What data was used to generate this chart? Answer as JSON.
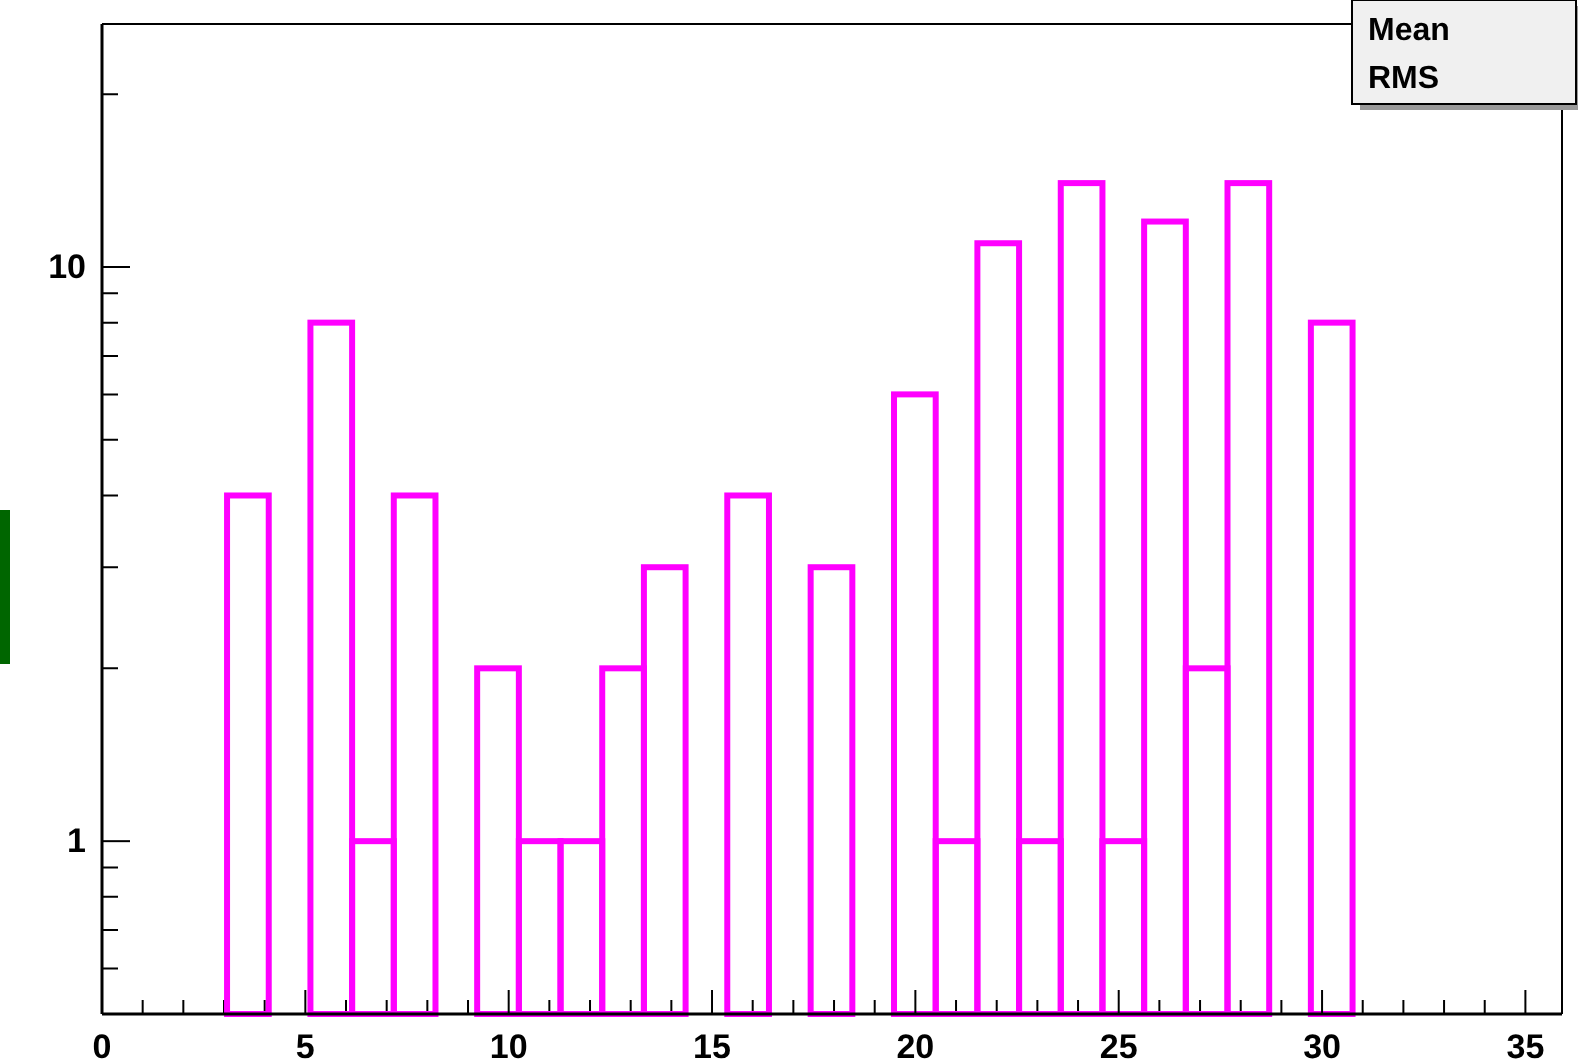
{
  "chart_data": {
    "type": "histogram",
    "bins": [
      3.075,
      4.1,
      5.125,
      6.15,
      7.175,
      8.2,
      9.225,
      10.25,
      11.275,
      12.3,
      13.325,
      14.35,
      15.375,
      16.4,
      17.425,
      18.45,
      19.475,
      20.5,
      21.525,
      22.55,
      23.575,
      24.6,
      25.625,
      26.65,
      27.675,
      28.7,
      29.725,
      30.75
    ],
    "values": [
      4,
      null,
      8,
      1,
      4,
      null,
      2,
      1,
      1,
      2,
      3,
      null,
      4,
      null,
      3,
      null,
      6,
      1,
      11,
      1,
      14,
      1,
      12,
      2,
      14,
      null,
      8
    ],
    "color": "#ff00ff",
    "log": "y",
    "xlim": [
      0,
      35.9
    ],
    "ylim": [
      0.5,
      26.5
    ],
    "xticks": [
      0,
      5,
      10,
      15,
      20,
      25,
      30,
      35
    ],
    "yticks": [
      1,
      10
    ],
    "annotations": [
      "Mean",
      "RMS"
    ]
  }
}
